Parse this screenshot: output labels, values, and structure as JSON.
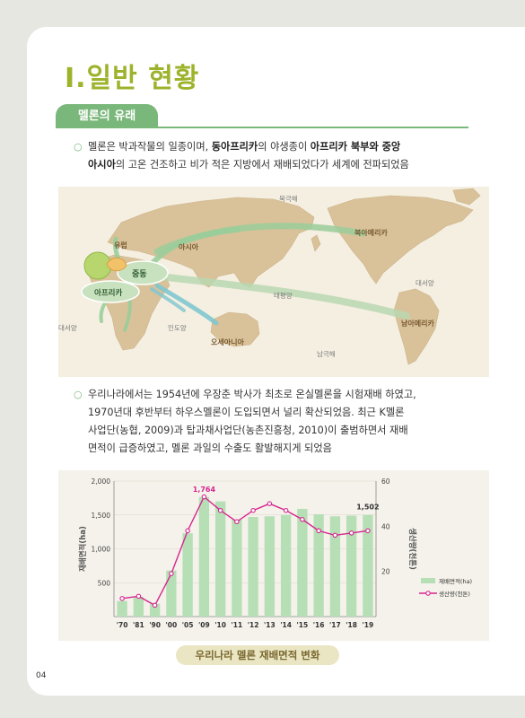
{
  "title": "Ⅰ.일반 현황",
  "section_tab": "멜론의 유래",
  "paragraph1": {
    "line1_a": "멜론은 박과작물의 일종이며, ",
    "line1_b": "동아프리카",
    "line1_c": "의 야생종이 ",
    "line1_d": "아프리카 북부와 중앙",
    "line2_a": "아시아",
    "line2_b": "의 고온 건조하고 비가 적은 지방에서 재배되었다가 세계에 전파되었음"
  },
  "map_labels": {
    "arctic": "북극해",
    "europe": "유럽",
    "asia": "아시아",
    "north_america": "북아메리카",
    "middle_east": "중동",
    "africa": "아프리카",
    "pacific": "태평양",
    "atlantic_east": "대서양",
    "atlantic_west": "대서양",
    "indian": "인도양",
    "oceania": "오세아니아",
    "south_america": "남아메리카",
    "antarctic": "남극해"
  },
  "paragraph2": {
    "line1": "우리나라에서는 1954년에 우장춘 박사가 최초로 온실멜론을 시험재배 하였고,",
    "line2": "1970년대 후반부터 하우스멜론이 도입되면서 널리 확산되었음. 최근 K멜론",
    "line3": "사업단(농협, 2009)과 탑과채사업단(농촌진흥청, 2010)이 출범하면서 재배",
    "line4": "면적이 급증하였고, 멜론 과일의 수출도 활발해지게 되었음"
  },
  "chart_data": {
    "type": "bar",
    "categories": [
      "'70",
      "'81",
      "'90",
      "'00",
      "'05",
      "'09",
      "'10",
      "'11",
      "'12",
      "'13",
      "'14",
      "'15",
      "'16",
      "'17",
      "'18",
      "'19"
    ],
    "series": [
      {
        "name": "재배면적(ha)",
        "type": "bar",
        "axis": "left",
        "values": [
          230,
          290,
          190,
          680,
          1230,
          1764,
          1700,
          1430,
          1470,
          1480,
          1500,
          1590,
          1510,
          1480,
          1490,
          1502
        ]
      },
      {
        "name": "생산량(천톤)",
        "type": "line",
        "axis": "right",
        "values": [
          8,
          9,
          5,
          19,
          38,
          53,
          47,
          42,
          47,
          50,
          47,
          43,
          38,
          36,
          37,
          38
        ]
      }
    ],
    "annotations": [
      {
        "category": "'09",
        "label": "1,764"
      },
      {
        "category": "'19",
        "label": "1,502"
      }
    ],
    "ylabel": "재배면적(ha)",
    "y2label": "생산량(천톤)",
    "ylim": [
      0,
      2000
    ],
    "y2lim": [
      0,
      60
    ],
    "yticks": [
      "500",
      "1,000",
      "1,500",
      "2,000"
    ],
    "y2ticks": [
      "20",
      "40",
      "60"
    ],
    "colors": {
      "bar": "#b6dfb6",
      "line": "#d6268f"
    },
    "grid": true,
    "legend": "bottom-right"
  },
  "caption": "우리나라 멜론 재배면적 변화",
  "page_number": "04"
}
